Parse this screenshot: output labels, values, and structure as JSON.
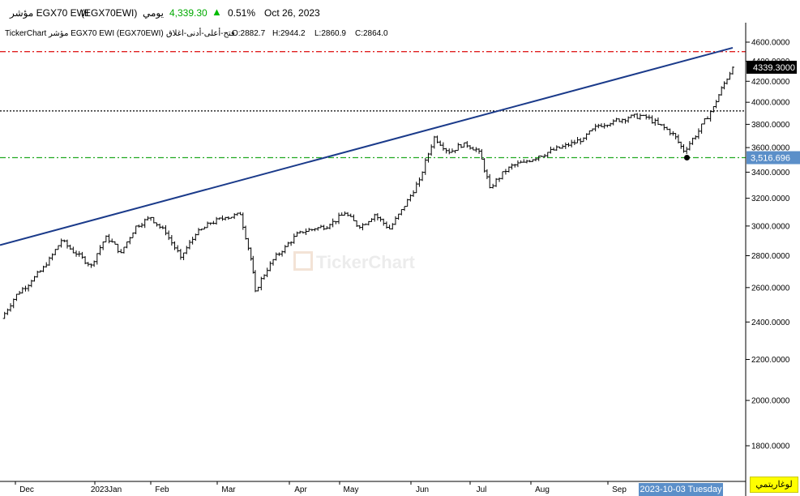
{
  "header": {
    "index_name": "مؤشر EGX70 EWI",
    "symbol": "(EGX70EWI)",
    "period": "يومي",
    "last_price": "4,339.30",
    "change_pct": "0.51%",
    "date": "Oct 26, 2023",
    "up_color": "#00aa00"
  },
  "info": {
    "source": "TickerChart",
    "series_title": "مؤشر EGX70 EWI (EGX70EWI)",
    "ohlc_label": "فتح-أعلى-أدنى-اغلاق",
    "open": "O:2882.7",
    "high": "H:2944.2",
    "low": "L:2860.9",
    "close": "C:2864.0"
  },
  "watermark": "TickerChart",
  "log_button": "لوغاريتمي",
  "cursor_date": "2023-10-03 Tuesday",
  "chart_data": {
    "type": "ohlc",
    "scale": "logarithmic",
    "ylim": [
      1650,
      4620
    ],
    "y_ticks": [
      1800,
      2000,
      2200,
      2400,
      2600,
      2800,
      3000,
      3200,
      3400,
      3600,
      3800,
      4000,
      4200,
      4400,
      4600
    ],
    "y_tick_labels": [
      "1800.0000",
      "2000.0000",
      "2200.0000",
      "2400.0000",
      "2600.0000",
      "2800.0000",
      "3000.0000",
      "3200.0000",
      "3400.0000",
      "3600.0000",
      "3800.0000",
      "4000.0000",
      "4200.0000",
      "4400.0000",
      "4600.0000"
    ],
    "x_labels": [
      "Dec",
      "2023Jan",
      "Feb",
      "Mar",
      "Apr",
      "May",
      "Jun",
      "Jul",
      "Aug",
      "Sep"
    ],
    "last_value_label": "4339.3000",
    "level_label": "3,516.696",
    "grid": false,
    "horizontal_lines": [
      {
        "value": 4500,
        "style": "dash-dot",
        "color": "#e02020"
      },
      {
        "value": 3920,
        "style": "dotted",
        "color": "#000000"
      },
      {
        "value": 3516.696,
        "style": "dash-dot",
        "color": "#22aa22"
      }
    ],
    "trendline": {
      "color": "#1a3a8a",
      "from": [
        "2022-11-17",
        2870
      ],
      "to": [
        "2023-10-26",
        4540
      ]
    },
    "marker": {
      "date": "2023-10-03",
      "value": 3516.696
    },
    "series": [
      {
        "date": "2022-11-17",
        "close": 2420
      },
      {
        "date": "2022-11-24",
        "close": 2560
      },
      {
        "date": "2022-12-01",
        "close": 2640
      },
      {
        "date": "2022-12-08",
        "close": 2740
      },
      {
        "date": "2022-12-15",
        "close": 2900
      },
      {
        "date": "2022-12-22",
        "close": 2810
      },
      {
        "date": "2022-12-29",
        "close": 2740
      },
      {
        "date": "2023-01-05",
        "close": 2930
      },
      {
        "date": "2023-01-12",
        "close": 2820
      },
      {
        "date": "2023-01-19",
        "close": 3000
      },
      {
        "date": "2023-01-26",
        "close": 3060
      },
      {
        "date": "2023-02-02",
        "close": 2950
      },
      {
        "date": "2023-02-09",
        "close": 2790
      },
      {
        "date": "2023-02-16",
        "close": 2940
      },
      {
        "date": "2023-02-23",
        "close": 3020
      },
      {
        "date": "2023-03-02",
        "close": 3060
      },
      {
        "date": "2023-03-09",
        "close": 3080
      },
      {
        "date": "2023-03-14",
        "close": 2780
      },
      {
        "date": "2023-03-16",
        "close": 2580
      },
      {
        "date": "2023-03-23",
        "close": 2750
      },
      {
        "date": "2023-03-30",
        "close": 2860
      },
      {
        "date": "2023-04-06",
        "close": 2960
      },
      {
        "date": "2023-04-13",
        "close": 2980
      },
      {
        "date": "2023-04-20",
        "close": 3010
      },
      {
        "date": "2023-04-27",
        "close": 3090
      },
      {
        "date": "2023-05-04",
        "close": 2990
      },
      {
        "date": "2023-05-11",
        "close": 3080
      },
      {
        "date": "2023-05-18",
        "close": 2980
      },
      {
        "date": "2023-05-25",
        "close": 3140
      },
      {
        "date": "2023-06-01",
        "close": 3340
      },
      {
        "date": "2023-06-08",
        "close": 3690
      },
      {
        "date": "2023-06-15",
        "close": 3560
      },
      {
        "date": "2023-06-22",
        "close": 3640
      },
      {
        "date": "2023-06-29",
        "close": 3570
      },
      {
        "date": "2023-07-04",
        "close": 3280
      },
      {
        "date": "2023-07-13",
        "close": 3440
      },
      {
        "date": "2023-07-20",
        "close": 3480
      },
      {
        "date": "2023-07-27",
        "close": 3530
      },
      {
        "date": "2023-08-03",
        "close": 3580
      },
      {
        "date": "2023-08-10",
        "close": 3620
      },
      {
        "date": "2023-08-17",
        "close": 3680
      },
      {
        "date": "2023-08-24",
        "close": 3790
      },
      {
        "date": "2023-08-31",
        "close": 3830
      },
      {
        "date": "2023-09-07",
        "close": 3860
      },
      {
        "date": "2023-09-14",
        "close": 3880
      },
      {
        "date": "2023-09-21",
        "close": 3800
      },
      {
        "date": "2023-09-28",
        "close": 3720
      },
      {
        "date": "2023-10-03",
        "close": 3570
      },
      {
        "date": "2023-10-10",
        "close": 3740
      },
      {
        "date": "2023-10-17",
        "close": 3960
      },
      {
        "date": "2023-10-22",
        "close": 4180
      },
      {
        "date": "2023-10-26",
        "close": 4339.3
      }
    ]
  }
}
